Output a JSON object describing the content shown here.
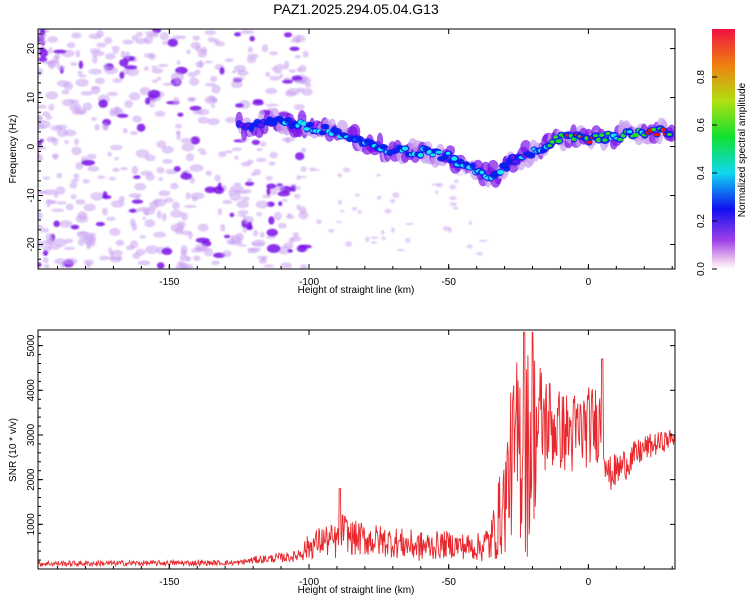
{
  "title": "PAZ1.2025.294.05.04.G13",
  "colors": {
    "snr_line": "#e8262b",
    "spectro_low": "#c9a0f0",
    "spectro_mid": "#7a10e8",
    "spectro_hi": "#0a1ef0",
    "spectro_cyan": "#18e8f0",
    "spectro_green": "#20e020",
    "spectro_red": "#f01010"
  },
  "chart_data": [
    {
      "type": "heatmap",
      "name": "spectrogram",
      "xlabel": "Height of straight line (km)",
      "ylabel": "Frequency (Hz)",
      "xlim": [
        -197,
        31
      ],
      "ylim": [
        -25,
        24
      ],
      "xticks": [
        -150,
        -100,
        -50,
        0
      ],
      "xtick_labels": [
        "-150",
        "-100",
        "-50",
        "0"
      ],
      "yticks": [
        20,
        10,
        0,
        -10,
        -20
      ],
      "ytick_labels": [
        "20",
        "10",
        "0",
        "-10",
        "-20"
      ],
      "colorbar": {
        "label": "Normalized spectral amplitude",
        "range": [
          0,
          1
        ],
        "ticks": [
          0.0,
          0.2,
          0.4,
          0.6,
          0.8
        ],
        "tick_labels": [
          "0.0",
          "0.2",
          "0.4",
          "0.6",
          "0.8"
        ]
      },
      "ridge": {
        "x": [
          -125,
          -110,
          -100,
          -90,
          -80,
          -70,
          -60,
          -50,
          -40,
          -35,
          -30,
          -25,
          -20,
          -15,
          -10,
          -5,
          0,
          5,
          10,
          20,
          30
        ],
        "freq": [
          4,
          5,
          4,
          3,
          1,
          -1,
          -1,
          -2,
          -5,
          -6,
          -4,
          -2,
          -1,
          0,
          2,
          2,
          1,
          2,
          2,
          3,
          3
        ],
        "amplitude": [
          0.25,
          0.35,
          0.4,
          0.35,
          0.4,
          0.35,
          0.45,
          0.45,
          0.4,
          0.45,
          0.35,
          0.3,
          0.4,
          0.5,
          0.7,
          0.6,
          0.85,
          0.6,
          0.6,
          0.7,
          0.9
        ]
      },
      "noise_region_x": [
        -197,
        -125
      ]
    },
    {
      "type": "line",
      "name": "snr",
      "xlabel": "Height of straight line (km)",
      "ylabel": "SNR (10 * v/v)",
      "xlim": [
        -197,
        31
      ],
      "ylim": [
        0,
        5350
      ],
      "xticks": [
        -150,
        -100,
        -50,
        0
      ],
      "xtick_labels": [
        "-150",
        "-100",
        "-50",
        "0"
      ],
      "yticks": [
        1000,
        2000,
        3000,
        4000,
        5000
      ],
      "ytick_labels": [
        "1000",
        "2000",
        "3000",
        "4000",
        "5000"
      ],
      "envelope": {
        "x": [
          -197,
          -125,
          -120,
          -105,
          -100,
          -95,
          -90,
          -88,
          -85,
          -70,
          -60,
          -50,
          -40,
          -35,
          -30,
          -28,
          -25,
          -22,
          -20,
          -18,
          -15,
          -10,
          -5,
          0,
          5,
          7,
          10,
          20,
          31
        ],
        "mean": [
          120,
          140,
          200,
          280,
          500,
          650,
          600,
          900,
          700,
          600,
          500,
          550,
          480,
          600,
          1500,
          2300,
          2800,
          2600,
          3000,
          3200,
          3300,
          3100,
          3000,
          3200,
          3300,
          2100,
          2200,
          2700,
          2950
        ],
        "spread": [
          60,
          60,
          80,
          120,
          300,
          350,
          400,
          400,
          400,
          350,
          350,
          300,
          300,
          500,
          1200,
          1600,
          2200,
          2400,
          2200,
          1600,
          1200,
          900,
          1000,
          900,
          900,
          400,
          400,
          300,
          200
        ]
      },
      "peaks": [
        {
          "x": -89,
          "y": 1800
        },
        {
          "x": -23,
          "y": 5300
        },
        {
          "x": -20,
          "y": 5300
        },
        {
          "x": 5,
          "y": 4700
        }
      ]
    }
  ]
}
